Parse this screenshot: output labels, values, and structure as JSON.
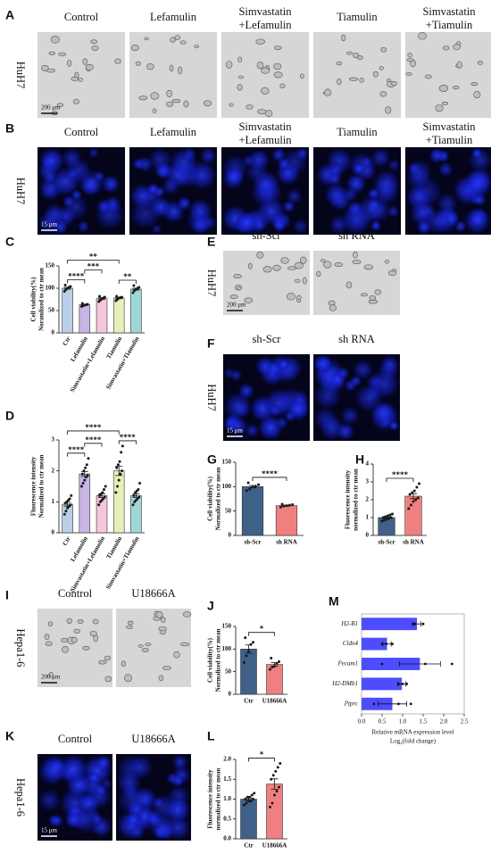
{
  "figure": {
    "A": {
      "label": "A",
      "row": "HuH7",
      "columns": [
        [
          "Control"
        ],
        [
          "Lefamulin"
        ],
        [
          "Simvastatin",
          "+Lefamulin"
        ],
        [
          "Tiamulin"
        ],
        [
          "Simvastatin",
          "+Tiamulin"
        ]
      ],
      "scale": "200 μm"
    },
    "B": {
      "label": "B",
      "row": "HuH7",
      "columns": [
        [
          "Control"
        ],
        [
          "Lefamulin"
        ],
        [
          "Simvastatin",
          "+Lefamulin"
        ],
        [
          "Tiamulin"
        ],
        [
          "Simvastatin",
          "+Tiamulin"
        ]
      ],
      "scale": "15 μm"
    },
    "E": {
      "label": "E",
      "row": "HuH7",
      "columns": [
        [
          "sh-Scr"
        ],
        [
          "sh RNA"
        ]
      ],
      "scale": "200 μm"
    },
    "F": {
      "label": "F",
      "row": "HuH7",
      "columns": [
        [
          "sh-Scr"
        ],
        [
          "sh RNA"
        ]
      ],
      "scale": "15 μm"
    },
    "I": {
      "label": "I",
      "row": "Hepa1-6",
      "columns": [
        [
          "Control"
        ],
        [
          "U18666A"
        ]
      ],
      "scale": "200 μm"
    },
    "K": {
      "label": "K",
      "row": "Hepa1-6",
      "columns": [
        [
          "Control"
        ],
        [
          "U18666A"
        ]
      ],
      "scale": "15 μm"
    }
  },
  "chart_data": [
    {
      "type": "bar",
      "label": "C",
      "ylabel": [
        "Cell viability(%)",
        "Noramlized to ctr mean"
      ],
      "categories": [
        "Ctr",
        "Lefamulin",
        "Simvastatin+Lefamulin",
        "Tiamulin",
        "Simvastatin+Tiamulin"
      ],
      "values": [
        100,
        63,
        77,
        78,
        98
      ],
      "errors": [
        2,
        1,
        2,
        1.5,
        2
      ],
      "points": [
        [
          93,
          97,
          100,
          102,
          104,
          107
        ],
        [
          59,
          61,
          62,
          63,
          64,
          66
        ],
        [
          70,
          73,
          76,
          78,
          80,
          82
        ],
        [
          72,
          75,
          78,
          79,
          80,
          82
        ],
        [
          90,
          95,
          97,
          100,
          102,
          106
        ]
      ],
      "colors": [
        "#b9cfe8",
        "#c9b6e4",
        "#f6c6dd",
        "#e6f0b8",
        "#9fd7d8"
      ],
      "ylim": [
        0,
        150
      ],
      "yticks": [
        0,
        50,
        100,
        150
      ],
      "significance": [
        {
          "label": "****",
          "groups": [
            "Ctr",
            "Lefamulin"
          ]
        },
        {
          "label": "***",
          "groups": [
            "Lefamulin",
            "Simvastatin+Lefamulin"
          ]
        },
        {
          "label": "**",
          "groups": [
            "Tiamulin",
            "Simvastatin+Tiamulin"
          ]
        },
        {
          "label": "**",
          "groups": [
            "Ctr",
            "Tiamulin"
          ]
        }
      ]
    },
    {
      "type": "bar",
      "label": "D",
      "ylabel": [
        "Fluorescence intensity",
        "Normalized to ctr mean"
      ],
      "categories": [
        "Ctr",
        "Lefamulin",
        "Simvastatin+Lefamulin",
        "Tiamulin",
        "Simvastatin+Tiamulin"
      ],
      "values": [
        0.92,
        1.9,
        1.2,
        2.0,
        1.2
      ],
      "errors": [
        0.06,
        0.08,
        0.06,
        0.15,
        0.06
      ],
      "points": [
        [
          0.6,
          0.7,
          0.8,
          0.85,
          0.9,
          0.95,
          1.0,
          1.05,
          1.1,
          1.2
        ],
        [
          1.5,
          1.6,
          1.7,
          1.8,
          1.85,
          1.9,
          2.0,
          2.1,
          2.2,
          2.4
        ],
        [
          0.9,
          1.0,
          1.05,
          1.1,
          1.15,
          1.2,
          1.25,
          1.3,
          1.4,
          1.5
        ],
        [
          1.3,
          1.5,
          1.7,
          1.9,
          2.0,
          2.1,
          2.2,
          2.3,
          2.6,
          2.8
        ],
        [
          0.9,
          1.0,
          1.05,
          1.1,
          1.15,
          1.2,
          1.3,
          1.35,
          1.4,
          1.6
        ]
      ],
      "colors": [
        "#b9cfe8",
        "#c9b6e4",
        "#f6c6dd",
        "#e6f0b8",
        "#9fd7d8"
      ],
      "ylim": [
        0,
        3
      ],
      "yticks": [
        0,
        1,
        2,
        3
      ],
      "significance": [
        {
          "label": "****",
          "groups": [
            "Ctr",
            "Lefamulin"
          ]
        },
        {
          "label": "****",
          "groups": [
            "Lefamulin",
            "Simvastatin+Lefamulin"
          ]
        },
        {
          "label": "****",
          "groups": [
            "Tiamulin",
            "Simvastatin+Tiamulin"
          ]
        },
        {
          "label": "****",
          "groups": [
            "Ctr",
            "Tiamulin"
          ]
        }
      ]
    },
    {
      "type": "bar",
      "label": "G",
      "ylabel": [
        "Cell viability(%)",
        "Normalized to ctr mean"
      ],
      "categories": [
        "sh-Scr",
        "sh RNA"
      ],
      "values": [
        100,
        61
      ],
      "errors": [
        2.5,
        1
      ],
      "points": [
        [
          92,
          95,
          99,
          101,
          104,
          108
        ],
        [
          58,
          60,
          61,
          62,
          63,
          64
        ]
      ],
      "colors": [
        "#3f6187",
        "#f08080"
      ],
      "ylim": [
        0,
        150
      ],
      "yticks": [
        0,
        50,
        100,
        150
      ],
      "significance": [
        {
          "label": "****",
          "groups": [
            "sh-Scr",
            "sh RNA"
          ]
        }
      ]
    },
    {
      "type": "bar",
      "label": "H",
      "ylabel": [
        "Fluorescence intensity",
        "normalized to ctr mean"
      ],
      "categories": [
        "sh-Scr",
        "sh RNA"
      ],
      "values": [
        1.0,
        2.2
      ],
      "errors": [
        0.04,
        0.14
      ],
      "points": [
        [
          0.8,
          0.85,
          0.9,
          0.95,
          1.0,
          1.0,
          1.05,
          1.1,
          1.15,
          1.2
        ],
        [
          1.5,
          1.7,
          1.9,
          2.0,
          2.1,
          2.3,
          2.4,
          2.5,
          2.7,
          2.9
        ]
      ],
      "colors": [
        "#3f6187",
        "#f08080"
      ],
      "ylim": [
        0,
        4
      ],
      "yticks": [
        0,
        1,
        2,
        3,
        4
      ],
      "significance": [
        {
          "label": "****",
          "groups": [
            "sh-Scr",
            "sh RNA"
          ]
        }
      ]
    },
    {
      "type": "bar",
      "label": "J",
      "ylabel": [
        "Cell viability(%)",
        "Normalized to ctr mean"
      ],
      "categories": [
        "Ctr",
        "U18666A"
      ],
      "values": [
        100,
        66
      ],
      "errors": [
        9,
        4
      ],
      "points": [
        [
          70,
          85,
          95,
          110,
          115,
          125
        ],
        [
          55,
          60,
          62,
          68,
          72,
          80
        ]
      ],
      "colors": [
        "#3f6187",
        "#f08080"
      ],
      "ylim": [
        0,
        150
      ],
      "yticks": [
        0,
        50,
        100,
        150
      ],
      "significance": [
        {
          "label": "*",
          "groups": [
            "Ctr",
            "U18666A"
          ]
        }
      ]
    },
    {
      "type": "bar",
      "label": "L",
      "ylabel": [
        "Fluorescence intensity",
        "normalized to ctr mean"
      ],
      "categories": [
        "Ctr",
        "U18666A"
      ],
      "values": [
        1.0,
        1.38
      ],
      "errors": [
        0.03,
        0.13
      ],
      "points": [
        [
          0.85,
          0.9,
          0.95,
          0.95,
          1.0,
          1.0,
          1.05,
          1.05,
          1.1,
          1.15
        ],
        [
          0.8,
          0.9,
          1.1,
          1.2,
          1.3,
          1.5,
          1.6,
          1.7,
          1.8,
          1.9
        ]
      ],
      "colors": [
        "#3f6187",
        "#f08080"
      ],
      "ylim": [
        0,
        2
      ],
      "yticks": [
        {
          "value": 0,
          "label": "0.0"
        },
        0.5,
        {
          "value": 1,
          "label": "1.0"
        },
        1.5,
        {
          "value": 2,
          "label": "2.0"
        }
      ],
      "significance": [
        {
          "label": "*",
          "groups": [
            "Ctr",
            "U18666A"
          ]
        }
      ]
    },
    {
      "type": "hbar",
      "label": "M",
      "xlabel": [
        "Relative mRNA expression level",
        "Log₂(fold change)"
      ],
      "categories": [
        "H2-B1",
        "Cldn4",
        "Pecam1",
        "H2-DMb1",
        "Ptprc"
      ],
      "values": [
        1.35,
        0.62,
        1.42,
        0.98,
        0.75
      ],
      "errors": [
        0.1,
        0.1,
        0.5,
        0.1,
        0.35
      ],
      "points": [
        [
          1.25,
          1.3,
          1.5
        ],
        [
          0.5,
          0.6,
          0.75
        ],
        [
          0.5,
          1.55,
          2.2
        ],
        [
          0.9,
          1.0,
          1.1
        ],
        [
          0.3,
          0.9,
          1.2
        ]
      ],
      "color": "#4d4dff",
      "xlim": [
        0,
        2.5
      ],
      "xticks": [
        {
          "value": 0,
          "label": "0.0"
        },
        0.5,
        {
          "value": 1,
          "label": "1.0"
        },
        1.5,
        {
          "value": 2,
          "label": "2.0"
        },
        2.5
      ]
    }
  ]
}
